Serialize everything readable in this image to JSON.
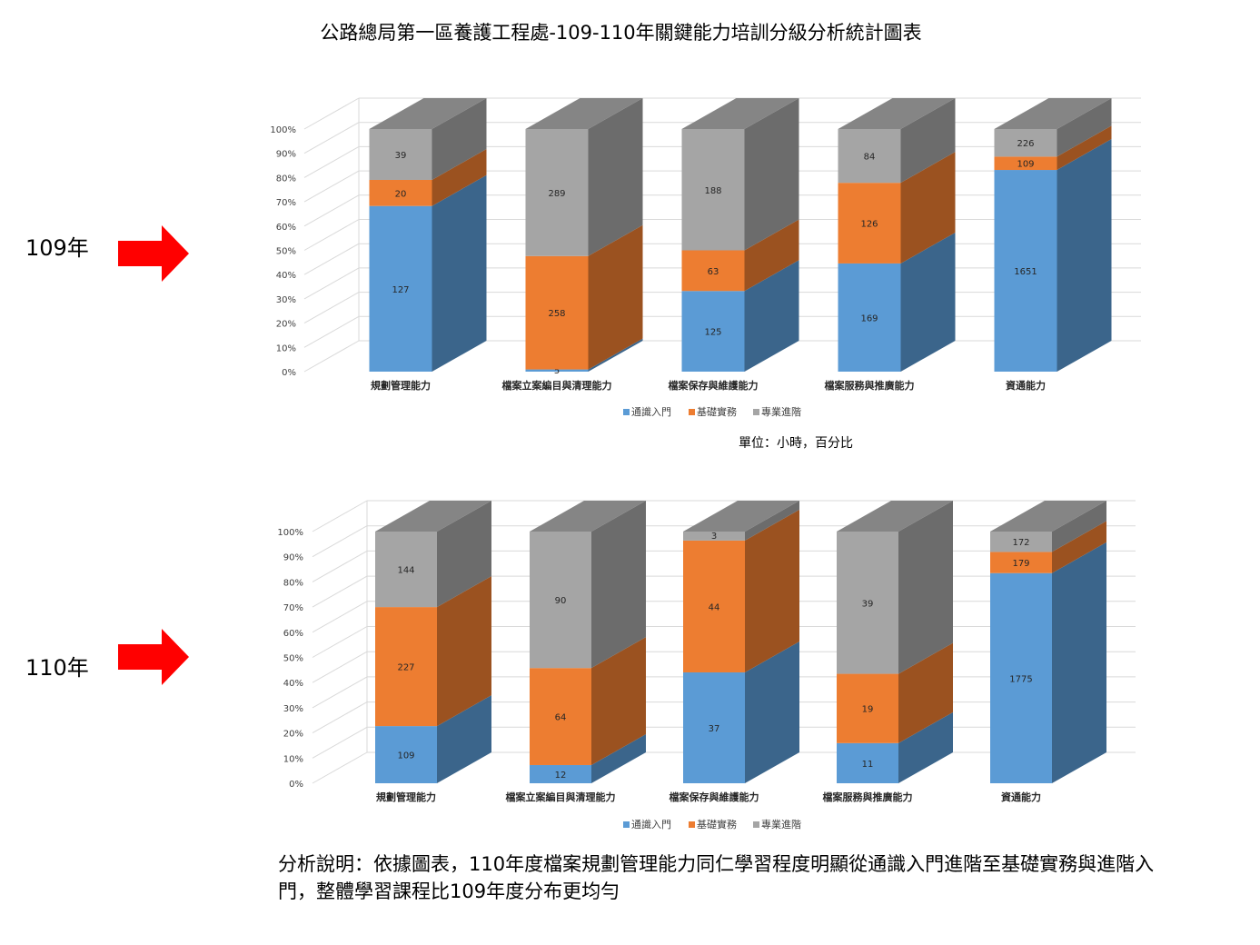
{
  "page": {
    "title": "公路總局第一區養護工程處-109-110年關鍵能力培訓分級分析統計圖表",
    "unit_note": "單位：小時，百分比",
    "analysis": "分析說明：依據圖表，110年度檔案規劃管理能力同仁學習程度明顯從通識入門進階至基礎實務與進階入門，整體學習課程比109年度分布更均勻"
  },
  "labels": {
    "year_109": "109年",
    "year_110": "110年"
  },
  "colors": {
    "series_front": [
      "#5b9bd5",
      "#ed7d31",
      "#a5a5a5"
    ],
    "series_side": [
      "#3b658b",
      "#9b5220",
      "#6c6c6c"
    ],
    "series_top": [
      "#4a7fb0",
      "#c4682a",
      "#858585"
    ],
    "arrow": "#ff0000",
    "grid": "#d9d9d9"
  },
  "chart_data": [
    {
      "type": "bar",
      "stacked": "percent",
      "categories": [
        "規劃管理能力",
        "檔案立案編目與清理能力",
        "檔案保存與維護能力",
        "檔案服務與推廣能力",
        "資通能力"
      ],
      "series": [
        {
          "name": "通識入門",
          "values": [
            127,
            5,
            125,
            169,
            1651
          ]
        },
        {
          "name": "基礎實務",
          "values": [
            20,
            258,
            63,
            126,
            109
          ]
        },
        {
          "name": "專業進階",
          "values": [
            39,
            289,
            188,
            84,
            226
          ]
        }
      ],
      "ylim": [
        0,
        100
      ],
      "yticks": [
        "0%",
        "10%",
        "20%",
        "30%",
        "40%",
        "50%",
        "60%",
        "70%",
        "80%",
        "90%",
        "100%"
      ],
      "legend": "bottom",
      "grid": true
    },
    {
      "type": "bar",
      "stacked": "percent",
      "categories": [
        "規劃管理能力",
        "檔案立案編目與清理能力",
        "檔案保存與維護能力",
        "檔案服務與推廣能力",
        "資通能力"
      ],
      "series": [
        {
          "name": "通識入門",
          "values": [
            109,
            12,
            37,
            11,
            1775
          ]
        },
        {
          "name": "基礎實務",
          "values": [
            227,
            64,
            44,
            19,
            179
          ]
        },
        {
          "name": "專業進階",
          "values": [
            144,
            90,
            3,
            39,
            172
          ]
        }
      ],
      "ylim": [
        0,
        100
      ],
      "yticks": [
        "0%",
        "10%",
        "20%",
        "30%",
        "40%",
        "50%",
        "60%",
        "70%",
        "80%",
        "90%",
        "100%"
      ],
      "legend": "bottom",
      "grid": true
    }
  ]
}
